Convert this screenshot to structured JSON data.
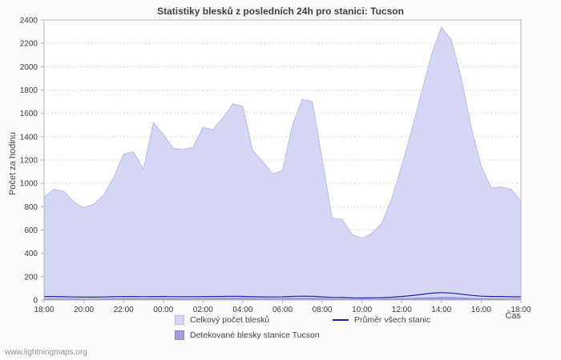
{
  "page": {
    "background": "#fcfcfc",
    "watermark": "www.lightningmaps.org"
  },
  "chart_data": {
    "type": "area",
    "title": "Statistiky blesků z posledních 24h pro stanici: Tucson",
    "ylabel": "Počet za hodinu",
    "xlabel": "Čas",
    "ylim": [
      0,
      2400
    ],
    "ytick_step": 200,
    "x_tick_labels": [
      "18:00",
      "20:00",
      "22:00",
      "00:00",
      "02:00",
      "04:00",
      "06:00",
      "08:00",
      "10:00",
      "12:00",
      "14:00",
      "16:00",
      "18:00"
    ],
    "x_start": "18:00",
    "x_interval_minutes": 30,
    "grid": "horizontal-dotted",
    "legend_position": "bottom",
    "plot_bg": "#ffffff",
    "grid_color": "#cccccc",
    "axis_color": "#b3b3b3",
    "series": [
      {
        "name": "Celkový počet blesků",
        "type": "area",
        "color": "#d6d6f5",
        "edge": "#b9b9ec",
        "values": [
          880,
          950,
          930,
          840,
          790,
          820,
          900,
          1050,
          1250,
          1270,
          1120,
          1520,
          1420,
          1300,
          1290,
          1310,
          1480,
          1460,
          1560,
          1680,
          1660,
          1280,
          1190,
          1080,
          1110,
          1500,
          1720,
          1700,
          1200,
          700,
          690,
          560,
          530,
          570,
          660,
          870,
          1150,
          1450,
          1780,
          2100,
          2340,
          2230,
          1900,
          1480,
          1150,
          960,
          970,
          950,
          850
        ]
      },
      {
        "name": "Detekované blesky stanice Tucson",
        "type": "area",
        "color": "#9e9ee0",
        "edge": "#8a8ad0",
        "values": [
          8,
          9,
          9,
          8,
          7,
          7,
          8,
          10,
          12,
          12,
          10,
          14,
          13,
          12,
          12,
          12,
          14,
          13,
          15,
          16,
          15,
          12,
          11,
          10,
          10,
          14,
          16,
          16,
          11,
          7,
          6,
          5,
          5,
          5,
          6,
          8,
          11,
          14,
          17,
          20,
          22,
          21,
          18,
          14,
          11,
          9,
          9,
          9,
          8
        ]
      },
      {
        "name": "Průměr všech stanic",
        "type": "line",
        "color": "#2222a0",
        "values": [
          30,
          30,
          28,
          26,
          25,
          25,
          26,
          28,
          30,
          30,
          29,
          30,
          30,
          29,
          29,
          29,
          30,
          30,
          31,
          32,
          31,
          28,
          27,
          26,
          27,
          31,
          33,
          32,
          27,
          22,
          21,
          18,
          17,
          18,
          20,
          24,
          30,
          38,
          48,
          58,
          64,
          60,
          50,
          40,
          33,
          30,
          30,
          28,
          27
        ]
      }
    ]
  }
}
